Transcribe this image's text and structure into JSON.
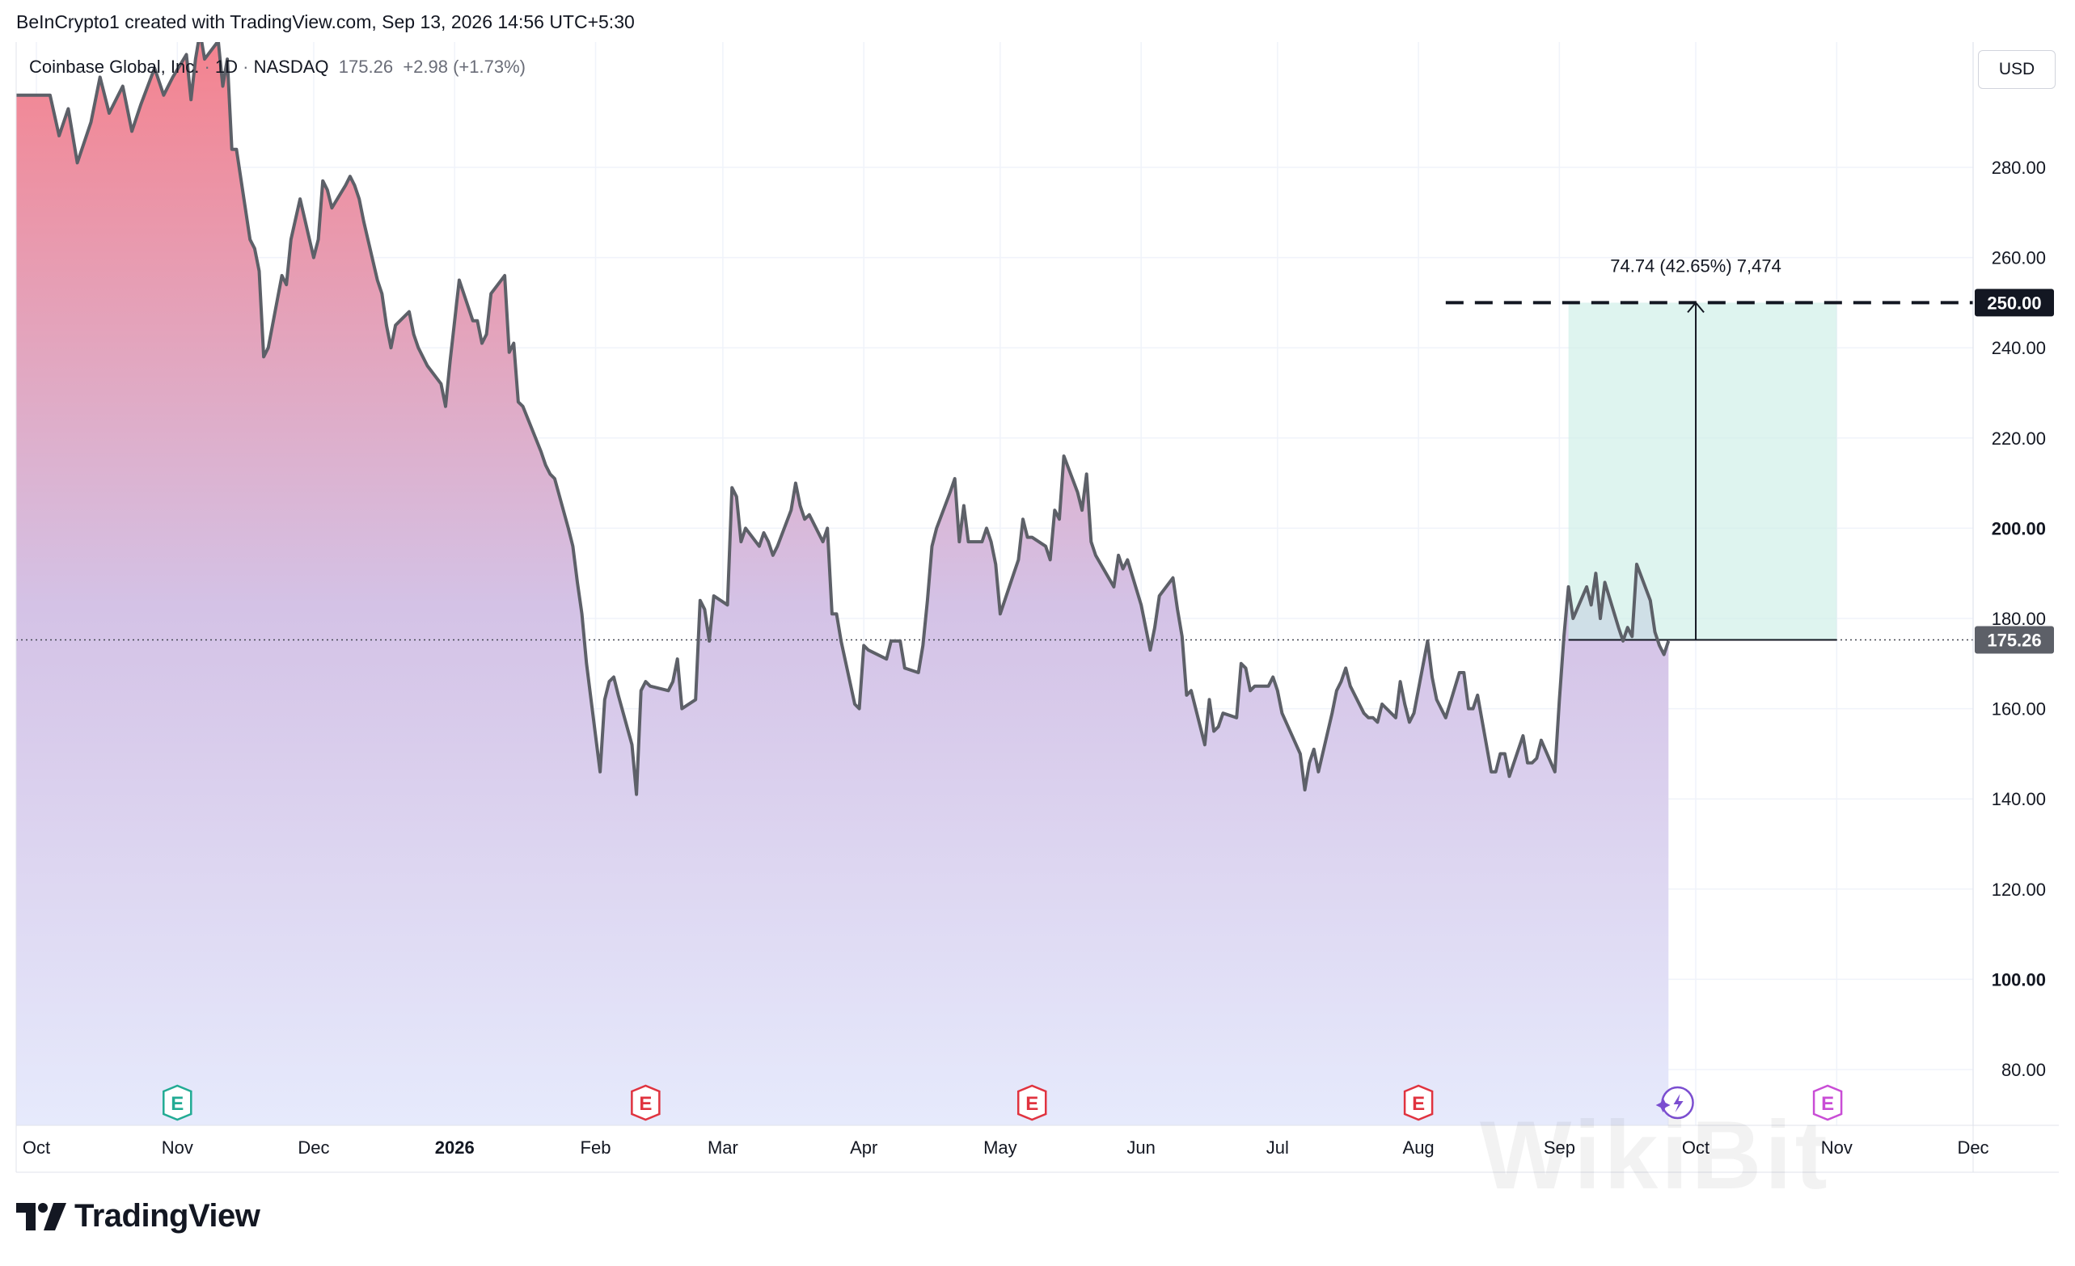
{
  "header": {
    "caption": "BeInCrypto1 created with TradingView.com, Sep 13, 2026 14:56 UTC+5:30"
  },
  "legend": {
    "symbol": "Coinbase Global, Inc.",
    "interval": "1D",
    "sep1": "·",
    "sep2": "·",
    "exchange": "NASDAQ",
    "last": "175.26",
    "change": "+2.98 (+1.73%)"
  },
  "currency": "USD",
  "brand": {
    "name": "TradingView"
  },
  "watermark": "WikiBit",
  "colors": {
    "line": "#5d6068",
    "fill_top": "#f4838f",
    "fill_mid": "#d4c2e6",
    "fill_bottom": "#e6eafc",
    "zone": "#cdeee6",
    "grid": "#f0f3fa",
    "earnings_green": "#22ab94",
    "earnings_red": "#e0333f",
    "earnings_purple": "#c94dd6",
    "dividend_icon": "#7b4ed0"
  },
  "chart_data": {
    "type": "area",
    "symbol": "COIN",
    "interval": "1D",
    "ylim": [
      70,
      312
    ],
    "yticks": [
      "80.00",
      "100.00",
      "120.00",
      "140.00",
      "160.00",
      "180.00",
      "200.00",
      "220.00",
      "240.00",
      "260.00",
      "280.00"
    ],
    "bold_yticks": [
      "100.00",
      "200.00"
    ],
    "xaxis": {
      "start": "2025-10-01",
      "end": "2026-12-01",
      "ticks": [
        {
          "label": "Oct",
          "date": "2025-10-01"
        },
        {
          "label": "Nov",
          "date": "2025-11-01"
        },
        {
          "label": "Dec",
          "date": "2025-12-01"
        },
        {
          "label": "2026",
          "date": "2026-01-01",
          "bold": true
        },
        {
          "label": "Feb",
          "date": "2026-02-01"
        },
        {
          "label": "Mar",
          "date": "2026-03-01"
        },
        {
          "label": "Apr",
          "date": "2026-04-01"
        },
        {
          "label": "May",
          "date": "2026-05-01"
        },
        {
          "label": "Jun",
          "date": "2026-06-01"
        },
        {
          "label": "Jul",
          "date": "2026-07-01"
        },
        {
          "label": "Aug",
          "date": "2026-08-01"
        },
        {
          "label": "Sep",
          "date": "2026-09-01"
        },
        {
          "label": "Oct",
          "date": "2026-10-01"
        },
        {
          "label": "Nov",
          "date": "2026-11-01"
        },
        {
          "label": "Dec",
          "date": "2026-12-01"
        }
      ]
    },
    "series": [
      {
        "values": [
          [
            "2025-10-04",
            296
          ],
          [
            "2025-10-06",
            287
          ],
          [
            "2025-10-08",
            293
          ],
          [
            "2025-10-10",
            281
          ],
          [
            "2025-10-13",
            290
          ],
          [
            "2025-10-15",
            300
          ],
          [
            "2025-10-17",
            292
          ],
          [
            "2025-10-20",
            298
          ],
          [
            "2025-10-22",
            288
          ],
          [
            "2025-10-24",
            294
          ],
          [
            "2025-10-27",
            302
          ],
          [
            "2025-10-29",
            296
          ],
          [
            "2025-10-31",
            300
          ],
          [
            "2025-11-03",
            305
          ],
          [
            "2025-11-04",
            295
          ],
          [
            "2025-11-05",
            304
          ],
          [
            "2025-11-06",
            310
          ],
          [
            "2025-11-07",
            304
          ],
          [
            "2025-11-10",
            308
          ],
          [
            "2025-11-11",
            298
          ],
          [
            "2025-11-12",
            304
          ],
          [
            "2025-11-13",
            284
          ],
          [
            "2025-11-14",
            284
          ],
          [
            "2025-11-17",
            264
          ],
          [
            "2025-11-18",
            262
          ],
          [
            "2025-11-19",
            257
          ],
          [
            "2025-11-20",
            238
          ],
          [
            "2025-11-21",
            240
          ],
          [
            "2025-11-24",
            256
          ],
          [
            "2025-11-25",
            254
          ],
          [
            "2025-11-26",
            264
          ],
          [
            "2025-11-28",
            273
          ],
          [
            "2025-12-01",
            260
          ],
          [
            "2025-12-02",
            264
          ],
          [
            "2025-12-03",
            277
          ],
          [
            "2025-12-04",
            275
          ],
          [
            "2025-12-05",
            271
          ],
          [
            "2025-12-08",
            276
          ],
          [
            "2025-12-09",
            278
          ],
          [
            "2025-12-10",
            276
          ],
          [
            "2025-12-11",
            273
          ],
          [
            "2025-12-12",
            268
          ],
          [
            "2025-12-15",
            255
          ],
          [
            "2025-12-16",
            252
          ],
          [
            "2025-12-17",
            245
          ],
          [
            "2025-12-18",
            240
          ],
          [
            "2025-12-19",
            245
          ],
          [
            "2025-12-22",
            248
          ],
          [
            "2025-12-23",
            243
          ],
          [
            "2025-12-24",
            240
          ],
          [
            "2025-12-26",
            236
          ],
          [
            "2025-12-29",
            232
          ],
          [
            "2025-12-30",
            227
          ],
          [
            "2025-12-31",
            237
          ],
          [
            "2026-01-02",
            255
          ],
          [
            "2026-01-05",
            246
          ],
          [
            "2026-01-06",
            246
          ],
          [
            "2026-01-07",
            241
          ],
          [
            "2026-01-08",
            243
          ],
          [
            "2026-01-09",
            252
          ],
          [
            "2026-01-12",
            256
          ],
          [
            "2026-01-13",
            239
          ],
          [
            "2026-01-14",
            241
          ],
          [
            "2026-01-15",
            228
          ],
          [
            "2026-01-16",
            227
          ],
          [
            "2026-01-20",
            217
          ],
          [
            "2026-01-21",
            214
          ],
          [
            "2026-01-22",
            212
          ],
          [
            "2026-01-23",
            211
          ],
          [
            "2026-01-26",
            200
          ],
          [
            "2026-01-27",
            196
          ],
          [
            "2026-01-28",
            188
          ],
          [
            "2026-01-29",
            181
          ],
          [
            "2026-01-30",
            170
          ],
          [
            "2026-02-02",
            146
          ],
          [
            "2026-02-03",
            162
          ],
          [
            "2026-02-04",
            166
          ],
          [
            "2026-02-05",
            167
          ],
          [
            "2026-02-06",
            163
          ],
          [
            "2026-02-09",
            152
          ],
          [
            "2026-02-10",
            141
          ],
          [
            "2026-02-11",
            164
          ],
          [
            "2026-02-12",
            166
          ],
          [
            "2026-02-13",
            165
          ],
          [
            "2026-02-17",
            164
          ],
          [
            "2026-02-18",
            166
          ],
          [
            "2026-02-19",
            171
          ],
          [
            "2026-02-20",
            160
          ],
          [
            "2026-02-23",
            162
          ],
          [
            "2026-02-24",
            184
          ],
          [
            "2026-02-25",
            182
          ],
          [
            "2026-02-26",
            175
          ],
          [
            "2026-02-27",
            185
          ],
          [
            "2026-03-02",
            183
          ],
          [
            "2026-03-03",
            209
          ],
          [
            "2026-03-04",
            207
          ],
          [
            "2026-03-05",
            197
          ],
          [
            "2026-03-06",
            200
          ],
          [
            "2026-03-09",
            196
          ],
          [
            "2026-03-10",
            199
          ],
          [
            "2026-03-11",
            197
          ],
          [
            "2026-03-12",
            194
          ],
          [
            "2026-03-13",
            196
          ],
          [
            "2026-03-16",
            204
          ],
          [
            "2026-03-17",
            210
          ],
          [
            "2026-03-18",
            205
          ],
          [
            "2026-03-19",
            202
          ],
          [
            "2026-03-20",
            203
          ],
          [
            "2026-03-23",
            197
          ],
          [
            "2026-03-24",
            200
          ],
          [
            "2026-03-25",
            181
          ],
          [
            "2026-03-26",
            181
          ],
          [
            "2026-03-27",
            175
          ],
          [
            "2026-03-30",
            161
          ],
          [
            "2026-03-31",
            160
          ],
          [
            "2026-04-01",
            174
          ],
          [
            "2026-04-02",
            173
          ],
          [
            "2026-04-06",
            171
          ],
          [
            "2026-04-07",
            175
          ],
          [
            "2026-04-08",
            175
          ],
          [
            "2026-04-09",
            175
          ],
          [
            "2026-04-10",
            169
          ],
          [
            "2026-04-13",
            168
          ],
          [
            "2026-04-14",
            174
          ],
          [
            "2026-04-15",
            184
          ],
          [
            "2026-04-16",
            196
          ],
          [
            "2026-04-17",
            200
          ],
          [
            "2026-04-20",
            208
          ],
          [
            "2026-04-21",
            211
          ],
          [
            "2026-04-22",
            197
          ],
          [
            "2026-04-23",
            205
          ],
          [
            "2026-04-24",
            197
          ],
          [
            "2026-04-27",
            197
          ],
          [
            "2026-04-28",
            200
          ],
          [
            "2026-04-29",
            197
          ],
          [
            "2026-04-30",
            192
          ],
          [
            "2026-05-01",
            181
          ],
          [
            "2026-05-04",
            190
          ],
          [
            "2026-05-05",
            193
          ],
          [
            "2026-05-06",
            202
          ],
          [
            "2026-05-07",
            198
          ],
          [
            "2026-05-08",
            198
          ],
          [
            "2026-05-11",
            196
          ],
          [
            "2026-05-12",
            193
          ],
          [
            "2026-05-13",
            204
          ],
          [
            "2026-05-14",
            202
          ],
          [
            "2026-05-15",
            216
          ],
          [
            "2026-05-18",
            208
          ],
          [
            "2026-05-19",
            204
          ],
          [
            "2026-05-20",
            212
          ],
          [
            "2026-05-21",
            197
          ],
          [
            "2026-05-22",
            194
          ],
          [
            "2026-05-26",
            187
          ],
          [
            "2026-05-27",
            194
          ],
          [
            "2026-05-28",
            191
          ],
          [
            "2026-05-29",
            193
          ],
          [
            "2026-06-01",
            183
          ],
          [
            "2026-06-02",
            178
          ],
          [
            "2026-06-03",
            173
          ],
          [
            "2026-06-04",
            178
          ],
          [
            "2026-06-05",
            185
          ],
          [
            "2026-06-08",
            189
          ],
          [
            "2026-06-09",
            182
          ],
          [
            "2026-06-10",
            176
          ],
          [
            "2026-06-11",
            163
          ],
          [
            "2026-06-12",
            164
          ],
          [
            "2026-06-15",
            152
          ],
          [
            "2026-06-16",
            162
          ],
          [
            "2026-06-17",
            155
          ],
          [
            "2026-06-18",
            156
          ],
          [
            "2026-06-19",
            159
          ],
          [
            "2026-06-22",
            158
          ],
          [
            "2026-06-23",
            170
          ],
          [
            "2026-06-24",
            169
          ],
          [
            "2026-06-25",
            164
          ],
          [
            "2026-06-26",
            165
          ],
          [
            "2026-06-29",
            165
          ],
          [
            "2026-06-30",
            167
          ],
          [
            "2026-07-01",
            164
          ],
          [
            "2026-07-02",
            159
          ],
          [
            "2026-07-06",
            150
          ],
          [
            "2026-07-07",
            142
          ],
          [
            "2026-07-08",
            148
          ],
          [
            "2026-07-09",
            151
          ],
          [
            "2026-07-10",
            146
          ],
          [
            "2026-07-13",
            159
          ],
          [
            "2026-07-14",
            164
          ],
          [
            "2026-07-15",
            166
          ],
          [
            "2026-07-16",
            169
          ],
          [
            "2026-07-17",
            165
          ],
          [
            "2026-07-20",
            159
          ],
          [
            "2026-07-21",
            158
          ],
          [
            "2026-07-22",
            158
          ],
          [
            "2026-07-23",
            157
          ],
          [
            "2026-07-24",
            161
          ],
          [
            "2026-07-27",
            158
          ],
          [
            "2026-07-28",
            166
          ],
          [
            "2026-07-29",
            161
          ],
          [
            "2026-07-30",
            157
          ],
          [
            "2026-07-31",
            159
          ],
          [
            "2026-08-03",
            175
          ],
          [
            "2026-08-04",
            167
          ],
          [
            "2026-08-05",
            162
          ],
          [
            "2026-08-06",
            160
          ],
          [
            "2026-08-07",
            158
          ],
          [
            "2026-08-10",
            168
          ],
          [
            "2026-08-11",
            168
          ],
          [
            "2026-08-12",
            160
          ],
          [
            "2026-08-13",
            160
          ],
          [
            "2026-08-14",
            163
          ],
          [
            "2026-08-17",
            146
          ],
          [
            "2026-08-18",
            146
          ],
          [
            "2026-08-19",
            150
          ],
          [
            "2026-08-20",
            150
          ],
          [
            "2026-08-21",
            145
          ],
          [
            "2026-08-24",
            154
          ],
          [
            "2026-08-25",
            148
          ],
          [
            "2026-08-26",
            148
          ],
          [
            "2026-08-27",
            149
          ],
          [
            "2026-08-28",
            153
          ],
          [
            "2026-08-31",
            146
          ],
          [
            "2026-09-01",
            162
          ],
          [
            "2026-09-02",
            176
          ],
          [
            "2026-09-03",
            187
          ],
          [
            "2026-09-04",
            180
          ],
          [
            "2026-09-07",
            187
          ],
          [
            "2026-09-08",
            183
          ],
          [
            "2026-09-09",
            190
          ],
          [
            "2026-09-10",
            180
          ],
          [
            "2026-09-11",
            188
          ],
          [
            "2026-09-14",
            178
          ],
          [
            "2026-09-15",
            175
          ],
          [
            "2026-09-16",
            178
          ],
          [
            "2026-09-17",
            176
          ],
          [
            "2026-09-18",
            192
          ],
          [
            "2026-09-21",
            184
          ],
          [
            "2026-09-22",
            177
          ],
          [
            "2026-09-23",
            174
          ],
          [
            "2026-09-24",
            172
          ],
          [
            "2026-09-25",
            175
          ]
        ]
      }
    ],
    "last_price": 175.26,
    "last_price_label": "175.26",
    "target_price": 250,
    "target_label": "250.00",
    "target_line": {
      "from_date": "2026-08-07",
      "style": "dashed"
    },
    "projection": {
      "from_date": "2026-09-03",
      "to_date": "2026-11-01",
      "arrow_date": "2026-10-01",
      "low": 175.26,
      "high": 250,
      "label": "74.74 (42.65%) 7,474"
    },
    "events": [
      {
        "date": "2025-11-01",
        "type": "earnings",
        "label": "E",
        "color": "green"
      },
      {
        "date": "2026-02-12",
        "type": "earnings",
        "label": "E",
        "color": "red"
      },
      {
        "date": "2026-05-08",
        "type": "earnings",
        "label": "E",
        "color": "red"
      },
      {
        "date": "2026-08-01",
        "type": "earnings",
        "label": "E",
        "color": "red"
      },
      {
        "date": "2026-09-27",
        "type": "dividend",
        "label": "",
        "color": "purple"
      },
      {
        "date": "2026-10-30",
        "type": "earnings",
        "label": "E",
        "color": "purple"
      }
    ]
  }
}
